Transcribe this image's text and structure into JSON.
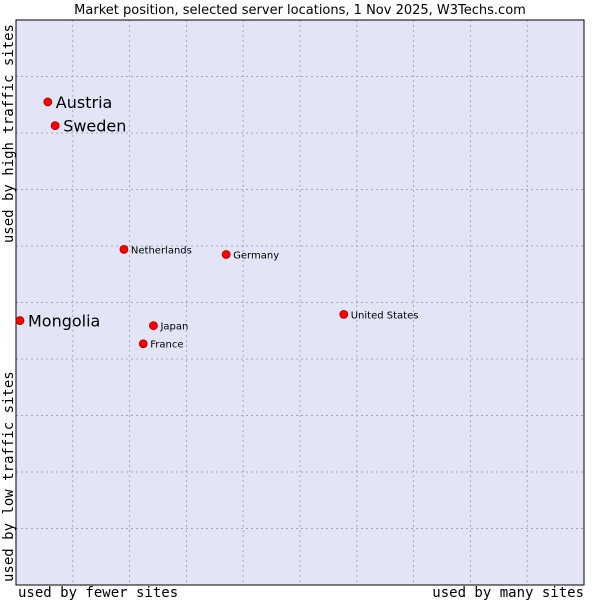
{
  "chart_data": {
    "type": "scatter",
    "title": "Market position, selected server locations, 1 Nov 2025, W3Techs.com",
    "xlabel_left": "used by fewer sites",
    "xlabel_right": "used by many sites",
    "ylabel_top": "used by high traffic sites",
    "ylabel_bottom": "used by low traffic sites",
    "xlim": [
      0,
      100
    ],
    "ylim": [
      0,
      100
    ],
    "grid": true,
    "colors": {
      "plot_bg": "#e3e5f7",
      "grid": "#a4a6c0",
      "border": "#000000",
      "point": "#ff0000",
      "point_edge": "#aa0000"
    },
    "points": [
      {
        "name": "Austria",
        "x": 5.6,
        "y": 85.5,
        "size": "large"
      },
      {
        "name": "Sweden",
        "x": 6.9,
        "y": 81.3,
        "size": "large"
      },
      {
        "name": "Netherlands",
        "x": 19.0,
        "y": 59.4,
        "size": "small"
      },
      {
        "name": "Germany",
        "x": 37.0,
        "y": 58.5,
        "size": "small"
      },
      {
        "name": "Mongolia",
        "x": 0.7,
        "y": 46.8,
        "size": "large"
      },
      {
        "name": "United States",
        "x": 57.7,
        "y": 47.9,
        "size": "small"
      },
      {
        "name": "Japan",
        "x": 24.2,
        "y": 45.9,
        "size": "small"
      },
      {
        "name": "France",
        "x": 22.4,
        "y": 42.7,
        "size": "small"
      }
    ]
  }
}
